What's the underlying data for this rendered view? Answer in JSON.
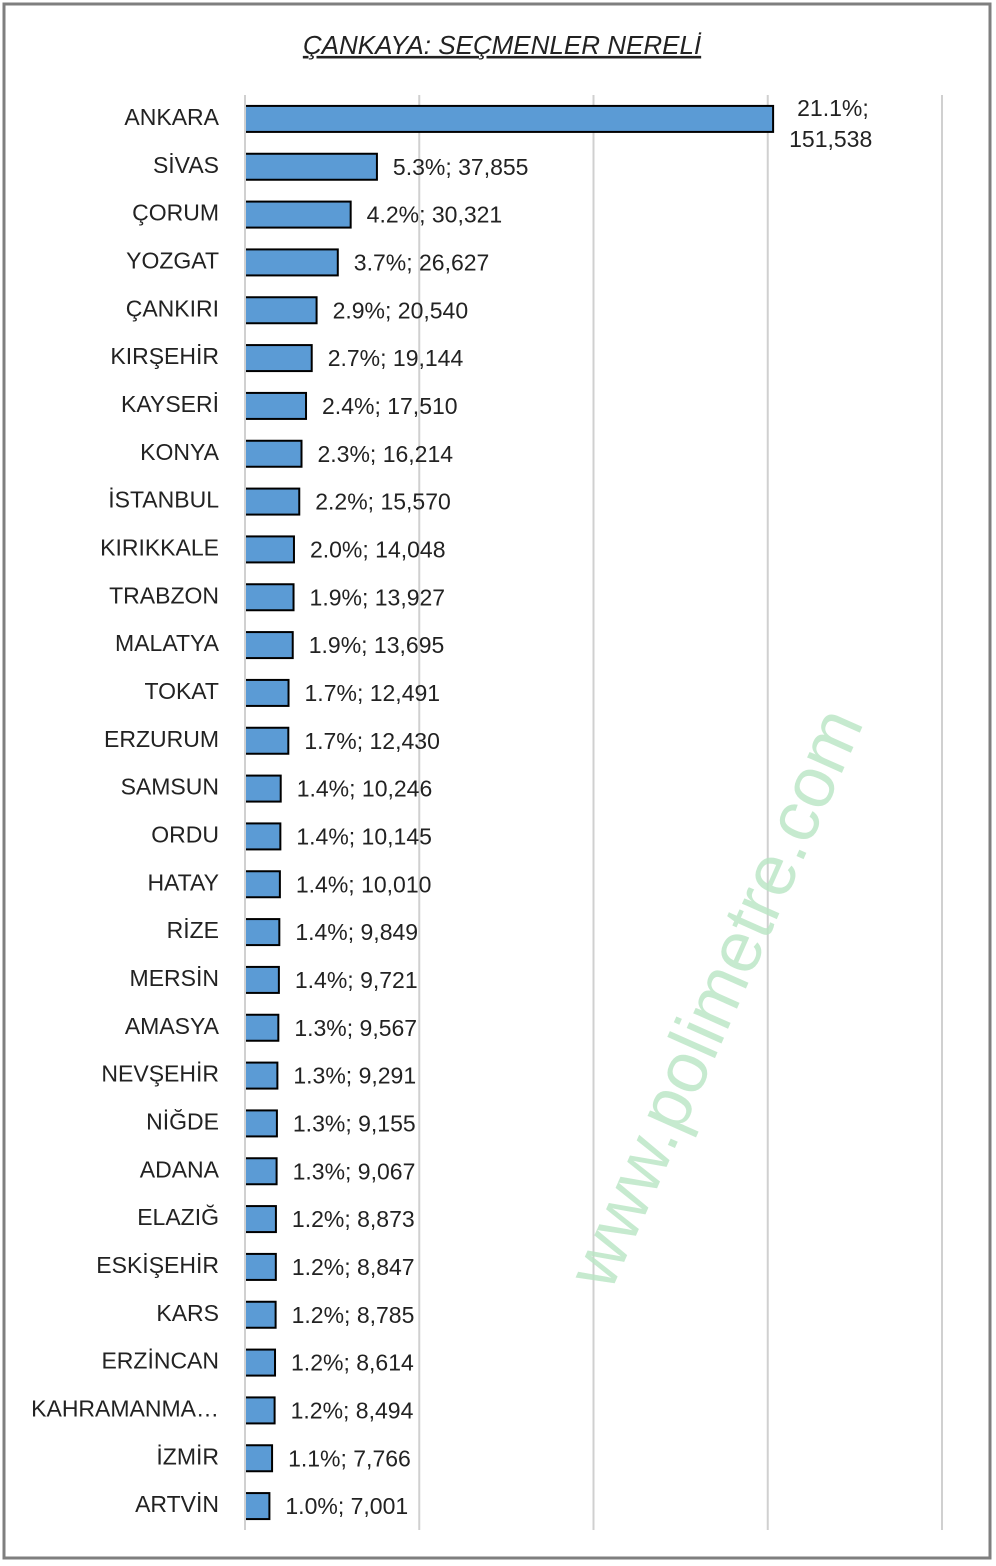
{
  "chart_data": {
    "type": "hbar",
    "title": "ÇANKAYA: SEÇMENLER NERELİ",
    "watermark": "www.polimetre.com",
    "categories": [
      "ANKARA",
      "SİVAS",
      "ÇORUM",
      "YOZGAT",
      "ÇANKIRI",
      "KIRŞEHİR",
      "KAYSERİ",
      "KONYA",
      "İSTANBUL",
      "KIRIKKALE",
      "TRABZON",
      "MALATYA",
      "TOKAT",
      "ERZURUM",
      "SAMSUN",
      "ORDU",
      "HATAY",
      "RİZE",
      "MERSİN",
      "AMASYA",
      "NEVŞEHİR",
      "NİĞDE",
      "ADANA",
      "ELAZIĞ",
      "ESKİŞEHİR",
      "KARS",
      "ERZİNCAN",
      "KAHRAMANMA…",
      "İZMİR",
      "ARTVİN"
    ],
    "values": [
      151538,
      37855,
      30321,
      26627,
      20540,
      19144,
      17510,
      16214,
      15570,
      14048,
      13927,
      13695,
      12491,
      12430,
      10246,
      10145,
      10010,
      9849,
      9721,
      9567,
      9291,
      9155,
      9067,
      8873,
      8847,
      8785,
      8614,
      8494,
      7766,
      7001
    ],
    "value_labels": [
      "21.1%; 151,538",
      "5.3%; 37,855",
      "4.2%; 30,321",
      "3.7%; 26,627",
      "2.9%; 20,540",
      "2.7%; 19,144",
      "2.4%; 17,510",
      "2.3%; 16,214",
      "2.2%; 15,570",
      "2.0%; 14,048",
      "1.9%; 13,927",
      "1.9%; 13,695",
      "1.7%; 12,491",
      "1.7%; 12,430",
      "1.4%; 10,246",
      "1.4%; 10,145",
      "1.4%; 10,010",
      "1.4%; 9,849",
      "1.4%; 9,721",
      "1.3%; 9,567",
      "1.3%; 9,291",
      "1.3%; 9,155",
      "1.3%; 9,067",
      "1.2%; 8,873",
      "1.2%; 8,847",
      "1.2%; 8,785",
      "1.2%; 8,614",
      "1.2%; 8,494",
      "1.1%; 7,766",
      "1.0%; 7,001"
    ],
    "color": "#5b9bd5",
    "xlim": [
      0,
      200000
    ],
    "xticks": [
      0,
      50000,
      100000,
      150000,
      200000
    ],
    "grid": true
  }
}
